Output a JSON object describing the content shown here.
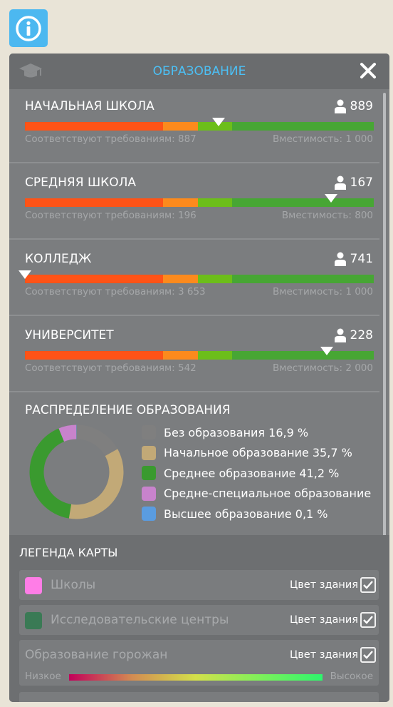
{
  "header": {
    "title": "ОБРАЗОВАНИЕ"
  },
  "schools": [
    {
      "name": "НАЧАЛЬНАЯ ШКОЛА",
      "count": "889",
      "requirements": "Соответствуют требованиям: 887",
      "capacity": "Вместимость: 1 000",
      "level": 0.556
    },
    {
      "name": "СРЕДНЯЯ ШКОЛА",
      "count": "167",
      "requirements": "Соответствуют требованиям: 196",
      "capacity": "Вместимость: 800",
      "level": 0.878
    },
    {
      "name": "КОЛЛЕДЖ",
      "count": "741",
      "requirements": "Соответствуют требованиям: 3 653",
      "capacity": "Вместимость: 1 000",
      "level": 0.0
    },
    {
      "name": "УНИВЕРСИТЕТ",
      "count": "228",
      "requirements": "Соответствуют требованиям: 542",
      "capacity": "Вместимость: 2 000",
      "level": 0.865
    }
  ],
  "distribution": {
    "title": "РАСПРЕДЕЛЕНИЕ ОБРАЗОВАНИЯ",
    "items": [
      {
        "label": "Без образования  16,9 %",
        "value": 16.9,
        "color": "#7f7f7f"
      },
      {
        "label": "Начальное образование  35,7 %",
        "value": 35.7,
        "color": "#c2a977"
      },
      {
        "label": "Среднее образование  41,2 %",
        "value": 41.2,
        "color": "#3a9a2f"
      },
      {
        "label": "Средне-специальное образование",
        "value": 6.1,
        "color": "#c883cc"
      },
      {
        "label": "Высшее образование  0,1 %",
        "value": 0.1,
        "color": "#5a9ce0"
      }
    ]
  },
  "map_legend": {
    "title": "ЛЕГЕНДА КАРТЫ",
    "rows": [
      {
        "label": "Школы",
        "color_label": "Цвет здания",
        "swatch": "#ff7de7",
        "checked": true
      },
      {
        "label": "Исследовательские центры",
        "color_label": "Цвет здания",
        "swatch": "#3a7a55",
        "checked": true
      },
      {
        "label": "Образование горожан",
        "color_label": "Цвет здания",
        "checked": true,
        "low": "Низкое",
        "high": "Высокое"
      }
    ]
  },
  "colors": {
    "accent": "#4cc0f5",
    "panel": "#7b7d7f",
    "info_button": "#4cb8f0"
  },
  "icons": [
    "info-icon",
    "graduation-cap-icon",
    "close-icon",
    "person-icon",
    "checkmark-icon"
  ]
}
